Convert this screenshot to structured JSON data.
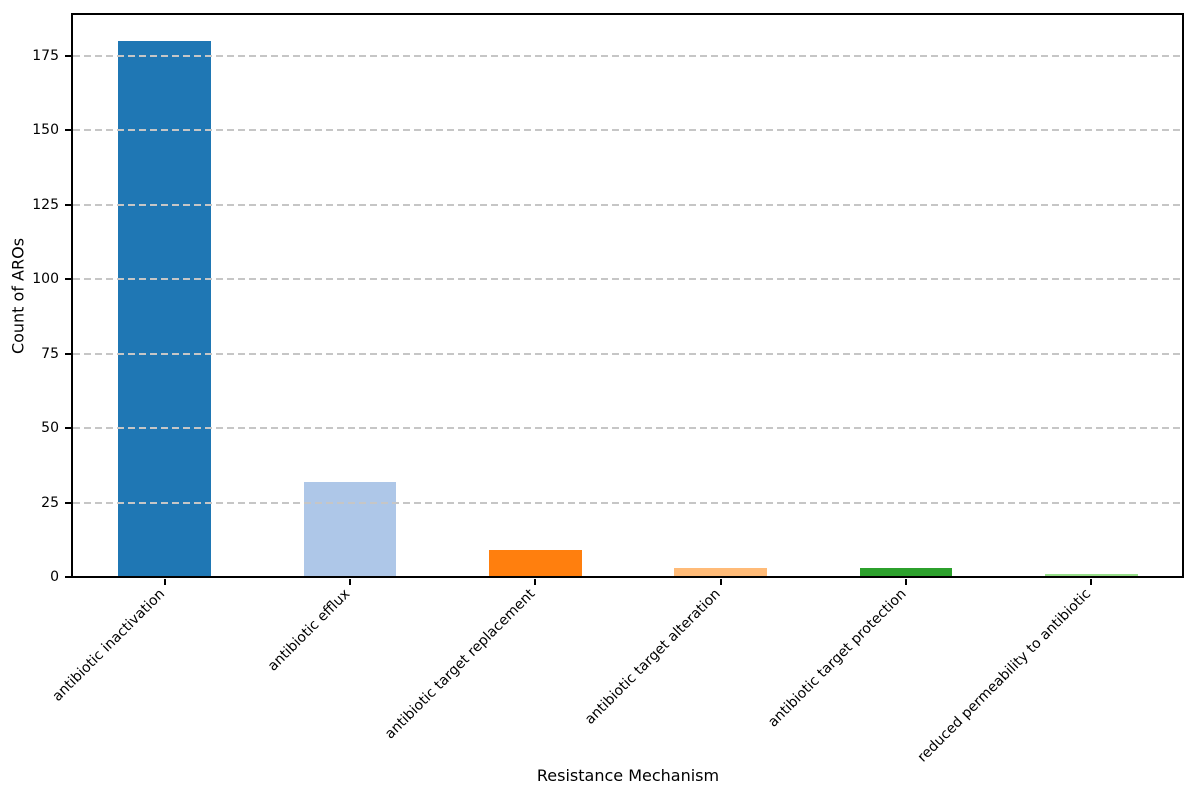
{
  "chart_data": {
    "type": "bar",
    "title": "",
    "xlabel": "Resistance Mechanism",
    "ylabel": "Count of AROs",
    "categories": [
      "antibiotic inactivation",
      "antibiotic efflux",
      "antibiotic target replacement",
      "antibiotic target alteration",
      "antibiotic target protection",
      "reduced permeability to antibiotic"
    ],
    "values": [
      180,
      32,
      9,
      3,
      3,
      1
    ],
    "bar_colors": [
      "#1f77b4",
      "#aec7e8",
      "#ff7f0e",
      "#ffbb78",
      "#2ca02c",
      "#98df8a"
    ],
    "yticks": [
      0,
      25,
      50,
      75,
      100,
      125,
      150,
      175
    ],
    "ylim": [
      0,
      189
    ],
    "grid": "horizontal-dashed",
    "grid_color": "#c6c6c6",
    "background_color": "#ffffff",
    "spine_color": "#000000",
    "text_color": "#000000",
    "legend": "none",
    "x_tick_rotation_deg": 45,
    "bar_relative_width": 0.5
  }
}
